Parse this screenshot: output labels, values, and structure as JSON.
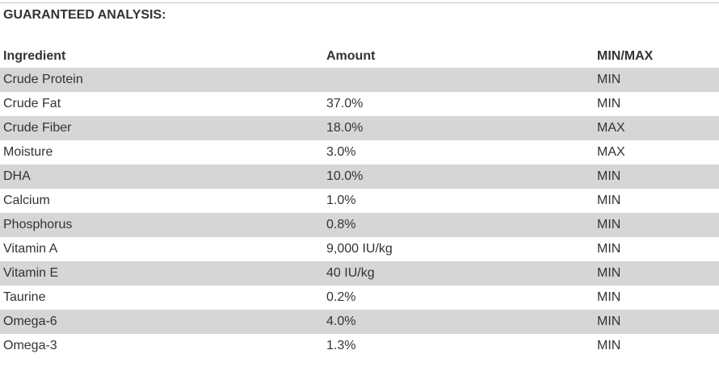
{
  "section": {
    "title": "GUARANTEED ANALYSIS:"
  },
  "table": {
    "headers": {
      "ingredient": "Ingredient",
      "amount": "Amount",
      "minmax": "MIN/MAX"
    },
    "rows": [
      {
        "ingredient": "Crude Protein",
        "amount": "",
        "minmax": "MIN"
      },
      {
        "ingredient": "Crude Fat",
        "amount": "37.0%",
        "minmax": "MIN"
      },
      {
        "ingredient": "Crude Fiber",
        "amount": "18.0%",
        "minmax": "MAX"
      },
      {
        "ingredient": "Moisture",
        "amount": "3.0%",
        "minmax": "MAX"
      },
      {
        "ingredient": "DHA",
        "amount": "10.0%",
        "minmax": "MIN"
      },
      {
        "ingredient": "Calcium",
        "amount": "1.0%",
        "minmax": "MIN"
      },
      {
        "ingredient": "Phosphorus",
        "amount": "0.8%",
        "minmax": "MIN"
      },
      {
        "ingredient": "Vitamin A",
        "amount": "9,000 IU/kg",
        "minmax": "MIN"
      },
      {
        "ingredient": "Vitamin E",
        "amount": "40 IU/kg",
        "minmax": "MIN"
      },
      {
        "ingredient": "Taurine",
        "amount": "0.2%",
        "minmax": "MIN"
      },
      {
        "ingredient": "Omega-6",
        "amount": "4.0%",
        "minmax": "MIN"
      },
      {
        "ingredient": "Omega-3",
        "amount": "1.3%",
        "minmax": "MIN"
      }
    ]
  }
}
